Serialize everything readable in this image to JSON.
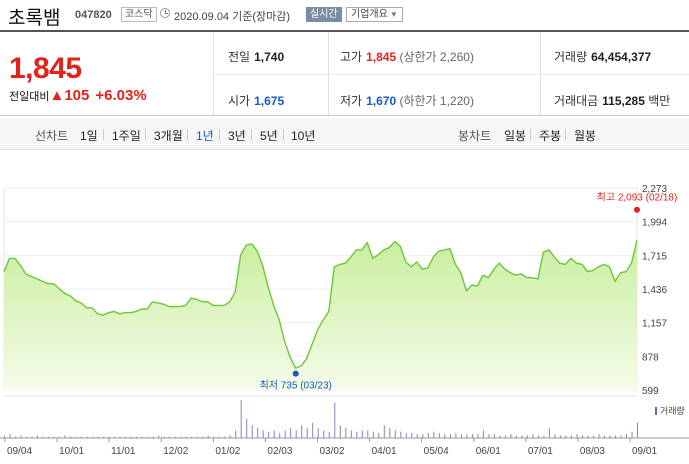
{
  "header": {
    "name": "초록뱀",
    "code": "047820",
    "market": "코스닥",
    "date_text": "2020.09.04 기준(장마감)",
    "live_label": "실시간",
    "company_label": "기업개요"
  },
  "summary": {
    "price": "1,845",
    "change_label": "전일대비",
    "change_value": "105",
    "change_pct": "+6.03%",
    "prev_label": "전일",
    "prev_value": "1,740",
    "high_label": "고가",
    "high_value": "1,845",
    "upper_limit": "(상한가 2,260)",
    "volume_label": "거래량",
    "volume_value": "64,454,377",
    "open_label": "시가",
    "open_value": "1,675",
    "low_label": "저가",
    "low_value": "1,670",
    "lower_limit": "(하한가 1,220)",
    "amount_label": "거래대금",
    "amount_value": "115,285",
    "amount_unit": "백만"
  },
  "tabs": {
    "line_label": "선차트",
    "periods": [
      "1일",
      "1주일",
      "3개월",
      "1년",
      "3년",
      "5년",
      "10년"
    ],
    "selected_period": "1년",
    "candle_label": "봉차트",
    "candles": [
      "일봉",
      "주봉",
      "월봉"
    ]
  },
  "chart_data": {
    "type": "area",
    "x_ticks": [
      "09/04",
      "10/01",
      "11/01",
      "12/02",
      "01/02",
      "02/03",
      "03/02",
      "04/01",
      "05/04",
      "06/01",
      "07/01",
      "08/03",
      "09/01"
    ],
    "y_ticks": [
      2273,
      1994,
      1715,
      1436,
      1157,
      878,
      599
    ],
    "ylim": [
      599,
      2273
    ],
    "high_annotation": "최고 2,093 (02/18)",
    "low_annotation": "최저 735 (03/23)",
    "volume_label": "거래량",
    "high_value": 2093,
    "low_value": 735,
    "price_series": [
      1580,
      1690,
      1690,
      1630,
      1560,
      1540,
      1520,
      1500,
      1480,
      1480,
      1440,
      1400,
      1380,
      1340,
      1320,
      1280,
      1280,
      1230,
      1220,
      1240,
      1250,
      1230,
      1240,
      1240,
      1250,
      1270,
      1270,
      1330,
      1320,
      1310,
      1290,
      1290,
      1290,
      1300,
      1360,
      1350,
      1330,
      1330,
      1300,
      1300,
      1300,
      1330,
      1410,
      1720,
      1800,
      1810,
      1750,
      1630,
      1450,
      1300,
      1180,
      1000,
      870,
      780,
      800,
      860,
      980,
      1100,
      1180,
      1250,
      1620,
      1640,
      1650,
      1700,
      1760,
      1760,
      1820,
      1690,
      1720,
      1760,
      1780,
      1830,
      1790,
      1660,
      1620,
      1660,
      1600,
      1610,
      1700,
      1750,
      1760,
      1770,
      1640,
      1570,
      1420,
      1470,
      1460,
      1550,
      1530,
      1600,
      1650,
      1600,
      1570,
      1550,
      1560,
      1530,
      1530,
      1520,
      1740,
      1760,
      1700,
      1650,
      1640,
      1690,
      1650,
      1640,
      1580,
      1590,
      1620,
      1640,
      1620,
      1500,
      1570,
      1580,
      1650,
      1840
    ],
    "volume_series": [
      2,
      3,
      1,
      2,
      1,
      1,
      2,
      1,
      1,
      1,
      1,
      2,
      1,
      1,
      1,
      1,
      1,
      1,
      1,
      1,
      1,
      1,
      1,
      1,
      1,
      1,
      1,
      1,
      2,
      1,
      1,
      1,
      1,
      1,
      1,
      1,
      1,
      2,
      1,
      1,
      1,
      2,
      6,
      30,
      15,
      10,
      8,
      6,
      5,
      6,
      4,
      6,
      8,
      6,
      10,
      8,
      12,
      8,
      6,
      5,
      28,
      10,
      8,
      6,
      5,
      6,
      6,
      5,
      4,
      10,
      8,
      6,
      5,
      4,
      4,
      3,
      3,
      4,
      5,
      4,
      3,
      3,
      4,
      3,
      3,
      3,
      3,
      6,
      3,
      3,
      2,
      2,
      3,
      2,
      2,
      2,
      3,
      2,
      2,
      8,
      3,
      2,
      2,
      2,
      3,
      2,
      2,
      2,
      3,
      2,
      2,
      2,
      2,
      3,
      5,
      12
    ]
  }
}
